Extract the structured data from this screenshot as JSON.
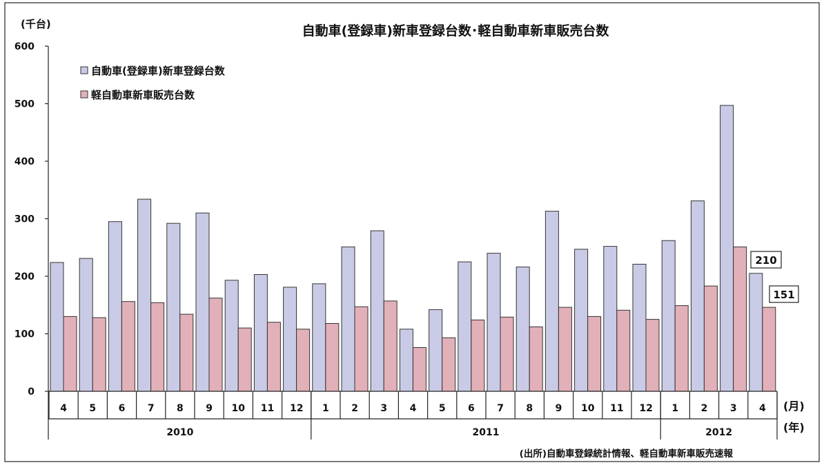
{
  "chart_data": {
    "type": "bar",
    "title": "自動車(登録車)新車登録台数･軽自動車新車販売台数",
    "ylabel": "(千台)",
    "xlabel_month": "(月)",
    "xlabel_year": "(年)",
    "source": "(出所)自動車登録統計情報、軽自動車新車販売速報",
    "ylim": [
      0,
      600
    ],
    "yticks": [
      "0",
      "100",
      "200",
      "300",
      "400",
      "500",
      "600"
    ],
    "grid": false,
    "legend_position": "top-left",
    "categories": [
      "4",
      "5",
      "6",
      "7",
      "8",
      "9",
      "10",
      "11",
      "12",
      "1",
      "2",
      "3",
      "4",
      "5",
      "6",
      "7",
      "8",
      "9",
      "10",
      "11",
      "12",
      "1",
      "2",
      "3",
      "4"
    ],
    "years": [
      {
        "label": "2010",
        "count": 9
      },
      {
        "label": "2011",
        "count": 12
      },
      {
        "label": "2012",
        "count": 4
      }
    ],
    "series": [
      {
        "name": "自動車(登録車)新車登録台数",
        "color": "#c9cbe6",
        "values": [
          224,
          231,
          295,
          334,
          292,
          310,
          193,
          203,
          181,
          187,
          251,
          279,
          108,
          142,
          225,
          240,
          216,
          313,
          247,
          252,
          221,
          262,
          331,
          497,
          205
        ]
      },
      {
        "name": "軽自動車新車販売台数",
        "color": "#e2b0b8",
        "values": [
          130,
          128,
          156,
          154,
          134,
          162,
          110,
          120,
          108,
          118,
          147,
          157,
          76,
          93,
          124,
          129,
          112,
          146,
          130,
          141,
          125,
          149,
          183,
          251,
          146
        ]
      }
    ],
    "annotations": [
      "210",
      "151"
    ]
  }
}
